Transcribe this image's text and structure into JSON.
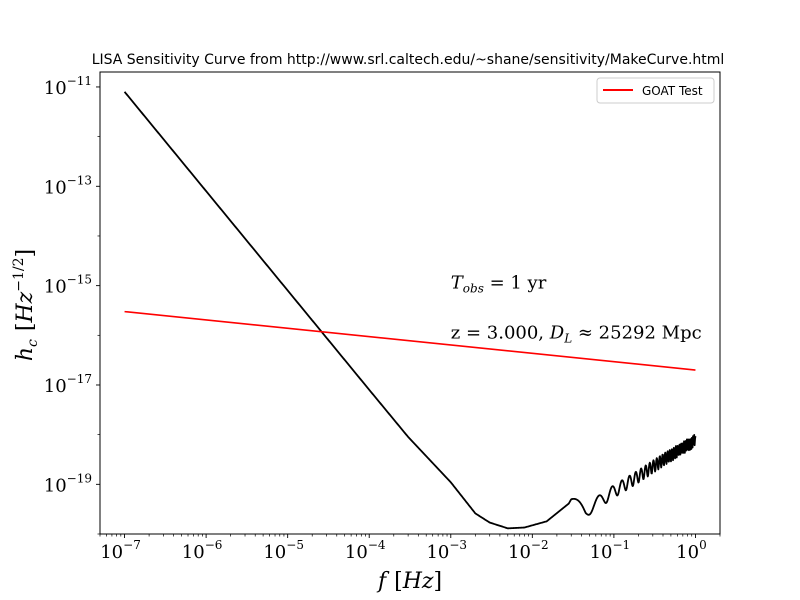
{
  "chart_data": {
    "type": "line",
    "title": "LISA Sensitivity Curve from http://www.srl.caltech.edu/~shane/sensitivity/MakeCurve.html",
    "xlabel": {
      "var": "f",
      "unit": "Hz"
    },
    "ylabel": {
      "var": "h",
      "sub": "c",
      "unit": "Hz",
      "unit_exp": "−1/2"
    },
    "x_scale": "log",
    "y_scale": "log",
    "xlim": [
      5e-08,
      2.0
    ],
    "ylim": [
      1e-20,
      2e-11
    ],
    "x_ticks": [
      {
        "exp": "−7",
        "value": 1e-07
      },
      {
        "exp": "−6",
        "value": 1e-06
      },
      {
        "exp": "−5",
        "value": 1e-05
      },
      {
        "exp": "−4",
        "value": 0.0001
      },
      {
        "exp": "−3",
        "value": 0.001
      },
      {
        "exp": "−2",
        "value": 0.01
      },
      {
        "exp": "−1",
        "value": 0.1
      },
      {
        "exp": "0",
        "value": 1
      }
    ],
    "y_ticks": [
      {
        "exp": "−11",
        "value": 1e-11
      },
      {
        "exp": "−13",
        "value": 1e-13
      },
      {
        "exp": "−15",
        "value": 1e-15
      },
      {
        "exp": "−17",
        "value": 1e-17
      },
      {
        "exp": "−19",
        "value": 1e-19
      }
    ],
    "series": [
      {
        "color": "#000000",
        "points": [
          [
            1e-07,
            8e-12
          ],
          [
            1e-06,
            8e-14
          ],
          [
            1e-05,
            8e-16
          ],
          [
            0.0001,
            8e-18
          ],
          [
            0.0003,
            9e-19
          ],
          [
            0.001,
            1.1e-19
          ],
          [
            0.002,
            2.6e-20
          ],
          [
            0.003,
            1.7e-20
          ],
          [
            0.005,
            1.3e-20
          ],
          [
            0.008,
            1.35e-20
          ],
          [
            0.015,
            1.8e-20
          ],
          [
            0.03,
            4.5e-20
          ],
          [
            0.045,
            3e-20
          ],
          [
            0.06,
            4.2e-20
          ],
          [
            0.1,
            7.5e-20
          ],
          [
            0.2,
            1.5e-19
          ],
          [
            0.4,
            3.2e-19
          ],
          [
            1,
            8e-19
          ]
        ],
        "oscillation": {
          "from_freq": 0.028,
          "period_freq": 0.03,
          "relative_amplitude": 0.28
        }
      },
      {
        "name": "GOAT Test",
        "color": "#ff0000",
        "points": [
          [
            1e-07,
            3e-16
          ],
          [
            1,
            2e-17
          ]
        ]
      }
    ],
    "annotations": [
      {
        "var": "T",
        "sub": "obs",
        "text": " = 1 yr",
        "x": 0.001,
        "y": 1e-15
      },
      {
        "text": "z = 3.000, ",
        "var": "D",
        "sub": "L",
        "text2": " ≈ 25292 Mpc",
        "x": 0.001,
        "y": 1e-16
      }
    ],
    "legend": {
      "position": "top-right"
    },
    "grid": false
  }
}
